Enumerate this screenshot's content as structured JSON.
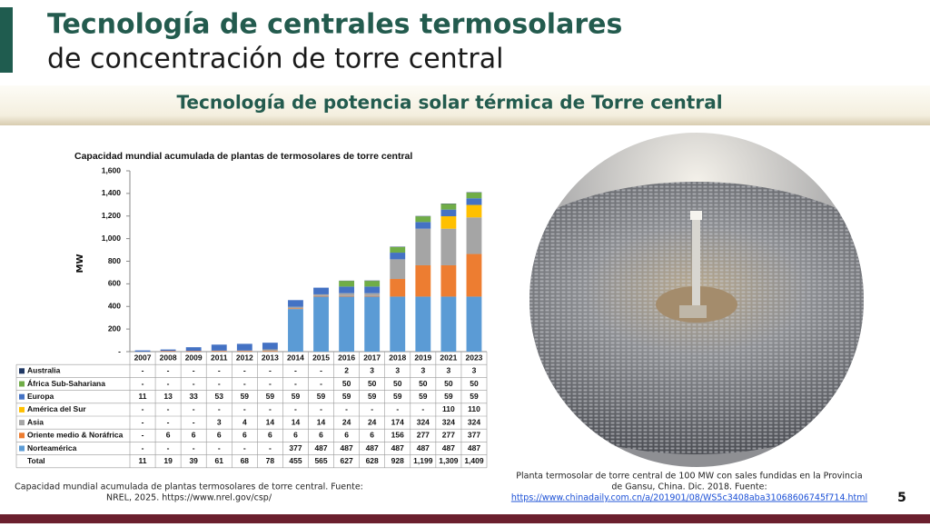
{
  "header": {
    "title": "Tecnología de centrales termosolares",
    "subtitle": "de concentración de torre central",
    "banner": "Tecnología de potencia solar térmica de Torre central"
  },
  "chart_data": {
    "type": "stacked_bar",
    "title": "Capacidad mundial acumulada de plantas de termosolares de torre central",
    "y_label": "MW",
    "categories": [
      "2007",
      "2008",
      "2009",
      "2011",
      "2012",
      "2013",
      "2014",
      "2015",
      "2016",
      "2017",
      "2018",
      "2019",
      "2021",
      "2023"
    ],
    "ylim": [
      0,
      1600
    ],
    "yticks": [
      {
        "value": 0,
        "label": "-"
      },
      200,
      400,
      600,
      800,
      {
        "value": 1000,
        "label": "1,000"
      },
      {
        "value": 1200,
        "label": "1,200"
      },
      {
        "value": 1400,
        "label": "1,400"
      },
      {
        "value": 1600,
        "label": "1,600"
      }
    ],
    "series": [
      {
        "name": "Australia",
        "color": "#203864",
        "values": [
          0,
          0,
          0,
          0,
          0,
          0,
          0,
          0,
          2,
          3,
          3,
          3,
          3,
          3
        ],
        "value_labels": [
          "-",
          "-",
          "-",
          "-",
          "-",
          "-",
          "-",
          "-",
          "2",
          "3",
          "3",
          "3",
          "3",
          "3"
        ]
      },
      {
        "name": "África Sub-Sahariana",
        "color": "#70ad47",
        "values": [
          0,
          0,
          0,
          0,
          0,
          0,
          0,
          0,
          50,
          50,
          50,
          50,
          50,
          50
        ],
        "value_labels": [
          "-",
          "-",
          "-",
          "-",
          "-",
          "-",
          "-",
          "-",
          "50",
          "50",
          "50",
          "50",
          "50",
          "50"
        ]
      },
      {
        "name": "Europa",
        "color": "#4472c4",
        "values": [
          11,
          13,
          33,
          53,
          59,
          59,
          59,
          59,
          59,
          59,
          59,
          59,
          59,
          59
        ],
        "value_labels": [
          "11",
          "13",
          "33",
          "53",
          "59",
          "59",
          "59",
          "59",
          "59",
          "59",
          "59",
          "59",
          "59",
          "59"
        ]
      },
      {
        "name": "América del Sur",
        "color": "#ffc000",
        "values": [
          0,
          0,
          0,
          0,
          0,
          0,
          0,
          0,
          0,
          0,
          0,
          0,
          110,
          110
        ],
        "value_labels": [
          "-",
          "-",
          "-",
          "-",
          "-",
          "-",
          "-",
          "-",
          "-",
          "-",
          "-",
          "-",
          "110",
          "110"
        ]
      },
      {
        "name": "Asia",
        "color": "#a5a5a5",
        "values": [
          0,
          0,
          0,
          3,
          4,
          14,
          14,
          14,
          24,
          24,
          174,
          324,
          324,
          324
        ],
        "value_labels": [
          "-",
          "-",
          "-",
          "3",
          "4",
          "14",
          "14",
          "14",
          "24",
          "24",
          "174",
          "324",
          "324",
          "324"
        ]
      },
      {
        "name": "Oriente medio & Noráfrica",
        "color": "#ed7d31",
        "values": [
          0,
          6,
          6,
          6,
          6,
          6,
          6,
          6,
          6,
          6,
          156,
          277,
          277,
          377
        ],
        "value_labels": [
          "-",
          "6",
          "6",
          "6",
          "6",
          "6",
          "6",
          "6",
          "6",
          "6",
          "156",
          "277",
          "277",
          "377"
        ]
      },
      {
        "name": "Norteamérica",
        "color": "#5b9bd5",
        "values": [
          0,
          0,
          0,
          0,
          0,
          0,
          377,
          487,
          487,
          487,
          487,
          487,
          487,
          487
        ],
        "value_labels": [
          "-",
          "-",
          "-",
          "-",
          "-",
          "-",
          "377",
          "487",
          "487",
          "487",
          "487",
          "487",
          "487",
          "487"
        ]
      }
    ],
    "totals_name": "Total",
    "totals": [
      11,
      19,
      39,
      61,
      68,
      78,
      455,
      565,
      627,
      628,
      928,
      1199,
      1309,
      1409
    ],
    "totals_labels": [
      "11",
      "19",
      "39",
      "61",
      "68",
      "78",
      "455",
      "565",
      "627",
      "628",
      "928",
      "1,199",
      "1,309",
      "1,409"
    ]
  },
  "chart_caption": [
    "Capacidad mundial acumulada de plantas termosolares de torre central. Fuente:",
    "NREL, 2025. https://www.nrel.gov/csp/"
  ],
  "photo_caption": [
    "Planta termosolar de torre central de 100 MW con sales fundidas en la Provincia",
    "de Gansu, China. Dic. 2018. Fuente:"
  ],
  "photo_link": "https://www.chinadaily.com.cn/a/201901/08/WS5c3408aba31068606745f714.html",
  "page_number": "5"
}
